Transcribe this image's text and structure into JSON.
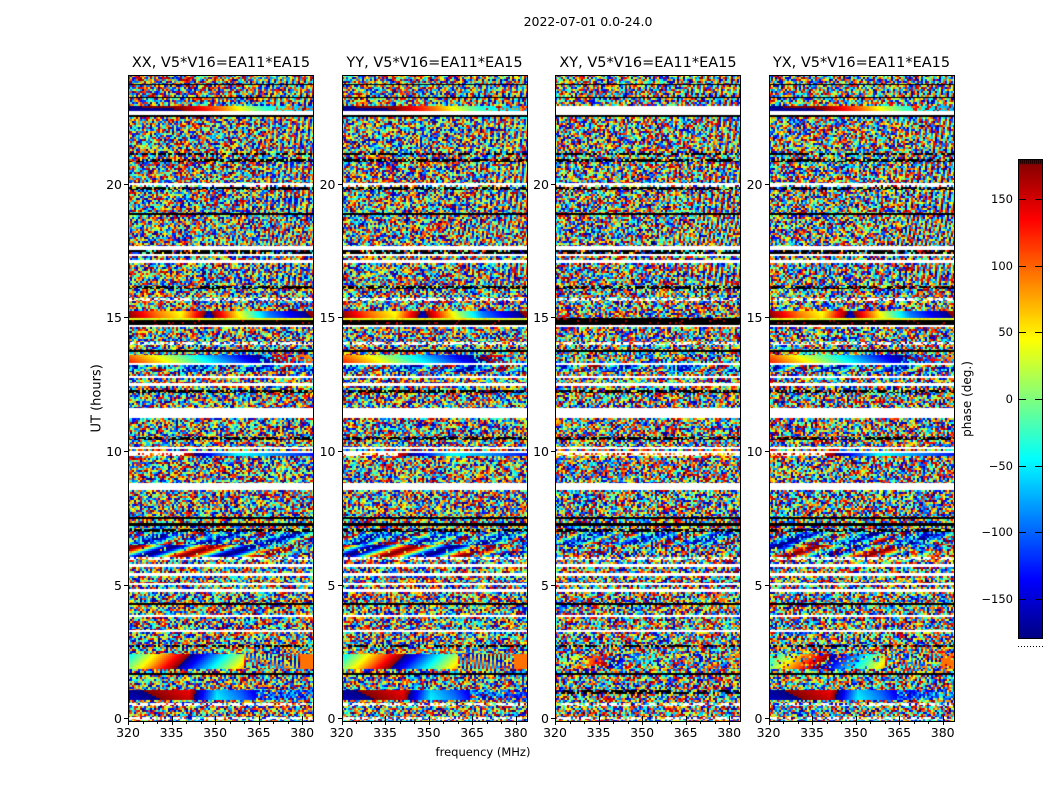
{
  "chart_data": {
    "type": "heatmap",
    "title": "2022-07-01 0.0-24.0",
    "xlabel": "frequency (MHz)",
    "ylabel": "UT (hours)",
    "xlim": [
      320,
      384
    ],
    "ylim": [
      0,
      24
    ],
    "xticks": [
      320,
      335,
      350,
      365,
      380
    ],
    "yticks": [
      0,
      5,
      10,
      15,
      20
    ],
    "panels": [
      {
        "title": "XX, V5*V16=EA11*EA15",
        "coherence": 1.0,
        "seed": 1
      },
      {
        "title": "YY, V5*V16=EA11*EA15",
        "coherence": 1.0,
        "seed": 2
      },
      {
        "title": "XY, V5*V16=EA11*EA15",
        "coherence": 0.3,
        "seed": 3
      },
      {
        "title": "YX, V5*V16=EA11*EA15",
        "coherence": 0.7,
        "seed": 4
      }
    ],
    "colorbar": {
      "label": "phase (deg.)",
      "ticks": [
        150,
        100,
        50,
        0,
        -50,
        -100,
        -150
      ],
      "vmin": -180,
      "vmax": 180,
      "colormap": "jet"
    },
    "content": "Interferometric visibility phase (deg.) vs frequency (MHz) and UT (hours); random phase noise within scans separated by white time gaps, flagged black rows, and occasional coherent rainbow phase-ramp bands",
    "bands": [
      [
        9,
        "m"
      ],
      [
        1,
        "b"
      ],
      [
        12,
        "m"
      ],
      [
        1,
        "b"
      ],
      [
        8,
        "m"
      ],
      [
        5,
        "r1"
      ],
      [
        4,
        "w"
      ],
      [
        2,
        "b"
      ],
      [
        36,
        "m"
      ],
      [
        2,
        "k"
      ],
      [
        4,
        "n"
      ],
      [
        3,
        "k"
      ],
      [
        21,
        "m"
      ],
      [
        2,
        "w"
      ],
      [
        2,
        "t"
      ],
      [
        3,
        "k"
      ],
      [
        23,
        "m"
      ],
      [
        2,
        "b"
      ],
      [
        31,
        "M"
      ],
      [
        4,
        "w"
      ],
      [
        4,
        "k"
      ],
      [
        2,
        "w"
      ],
      [
        4,
        "n"
      ],
      [
        3,
        "w"
      ],
      [
        23,
        "m"
      ],
      [
        3,
        "k"
      ],
      [
        9,
        "n"
      ],
      [
        3,
        "t"
      ],
      [
        10,
        "n"
      ],
      [
        7,
        "r2"
      ],
      [
        7,
        "B"
      ],
      [
        2,
        "w"
      ],
      [
        15,
        "n"
      ],
      [
        3,
        "t"
      ],
      [
        5,
        "n"
      ],
      [
        2,
        "b"
      ],
      [
        3,
        "n"
      ],
      [
        8,
        "r3"
      ],
      [
        2,
        "w"
      ],
      [
        7,
        "c"
      ],
      [
        4,
        "n"
      ],
      [
        2,
        "w"
      ],
      [
        5,
        "n"
      ],
      [
        3,
        "w"
      ],
      [
        4,
        "n"
      ],
      [
        3,
        "k"
      ],
      [
        15,
        "n"
      ],
      [
        10,
        "W"
      ],
      [
        19,
        "n"
      ],
      [
        3,
        "k"
      ],
      [
        7,
        "n"
      ],
      [
        2,
        "w"
      ],
      [
        2,
        "n"
      ],
      [
        2,
        "w"
      ],
      [
        3,
        "r4"
      ],
      [
        27,
        "n"
      ],
      [
        7,
        "W"
      ],
      [
        27,
        "n"
      ],
      [
        2,
        "b"
      ],
      [
        4,
        "n"
      ],
      [
        3,
        "b"
      ],
      [
        3,
        "n"
      ],
      [
        3,
        "k"
      ],
      [
        13,
        "c"
      ],
      [
        12,
        "r5"
      ],
      [
        3,
        "t"
      ],
      [
        4,
        "n"
      ],
      [
        3,
        "w"
      ],
      [
        6,
        "n"
      ],
      [
        3,
        "w"
      ],
      [
        7,
        "n"
      ],
      [
        2,
        "w"
      ],
      [
        4,
        "n"
      ],
      [
        3,
        "w"
      ],
      [
        11,
        "n"
      ],
      [
        2,
        "b"
      ],
      [
        10,
        "n"
      ],
      [
        2,
        "w"
      ],
      [
        13,
        "n"
      ],
      [
        2,
        "w"
      ],
      [
        13,
        "n"
      ],
      [
        2,
        "k"
      ],
      [
        7,
        "n"
      ],
      [
        15,
        "R"
      ],
      [
        4,
        "n"
      ],
      [
        2,
        "b"
      ],
      [
        15,
        "n"
      ],
      [
        10,
        "D"
      ],
      [
        3,
        "n"
      ],
      [
        3,
        "t"
      ],
      [
        11,
        "n"
      ],
      [
        3,
        "t"
      ],
      [
        2,
        "n"
      ]
    ]
  }
}
